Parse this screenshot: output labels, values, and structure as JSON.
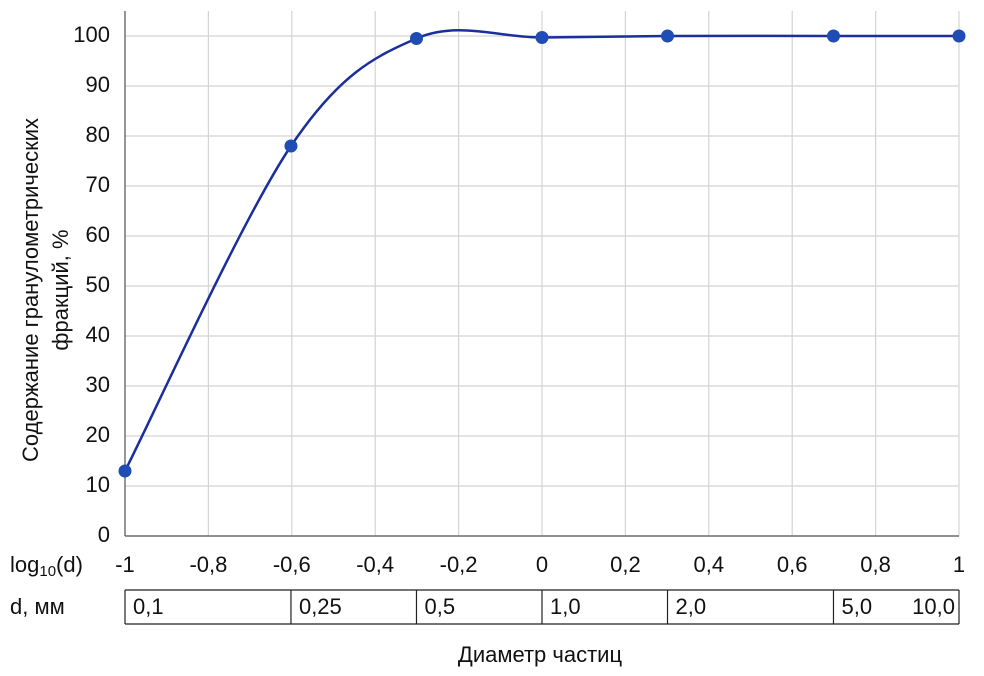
{
  "chart_data": {
    "type": "line",
    "ylabel": [
      "Содержание гранулометрических",
      "фракций, %"
    ],
    "xlabel": "Диаметр частиц",
    "x_row_label": {
      "base": "log",
      "sub": "10",
      "arg": "(d)"
    },
    "d_row_label": "d, мм",
    "x": [
      -1,
      -0.602,
      -0.301,
      0,
      0.301,
      0.699,
      1
    ],
    "d_labels": [
      "0,1",
      "0,25",
      "0,5",
      "1,0",
      "2,0",
      "5,0",
      "10,0"
    ],
    "series": [
      {
        "color": "#1b2f9c",
        "marker_color": "#1f4db3",
        "values": [
          13,
          78,
          99.5,
          99.7,
          100,
          100,
          100
        ]
      }
    ],
    "xlim": [
      -1,
      1
    ],
    "xticks": [
      -1,
      {
        "value": -0.8,
        "label": "-0,8"
      },
      {
        "value": -0.6,
        "label": "-0,6"
      },
      {
        "value": -0.4,
        "label": "-0,4"
      },
      {
        "value": -0.2,
        "label": "-0,2"
      },
      0,
      {
        "value": 0.2,
        "label": "0,2"
      },
      {
        "value": 0.4,
        "label": "0,4"
      },
      {
        "value": 0.6,
        "label": "0,6"
      },
      {
        "value": 0.8,
        "label": "0,8"
      },
      1
    ],
    "ylim": [
      0,
      105
    ],
    "yticks": [
      0,
      10,
      20,
      30,
      40,
      50,
      60,
      70,
      80,
      90,
      100
    ],
    "grid": true,
    "smooth": true
  }
}
